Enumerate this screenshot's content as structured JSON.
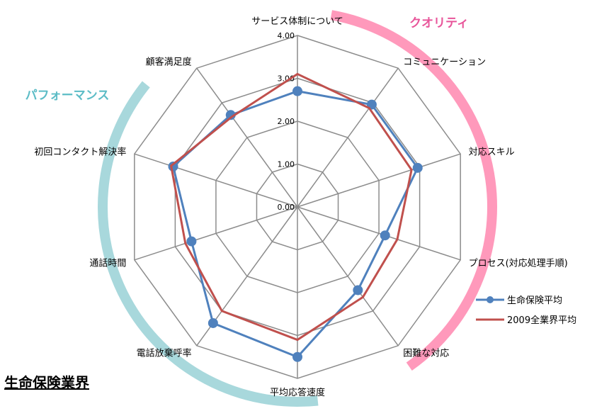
{
  "chart_data": {
    "type": "radar",
    "categories": [
      "サービス体制について",
      "コミュニケーション",
      "対応スキル",
      "プロセス(対応処理手順)",
      "困難な対応",
      "平均応答速度",
      "電話放棄呼率",
      "通話時間",
      "初回コンタクト解決率",
      "顧客満足度"
    ],
    "series": [
      {
        "name": "生命保険平均",
        "color": "#4f81bd",
        "values": [
          2.7,
          2.95,
          2.95,
          2.15,
          2.4,
          3.5,
          3.35,
          2.6,
          3.05,
          2.65
        ]
      },
      {
        "name": "2009全業界平均",
        "color": "#c0504d",
        "values": [
          3.1,
          2.85,
          2.8,
          2.45,
          2.6,
          3.1,
          3.0,
          2.75,
          3.1,
          2.6
        ]
      }
    ],
    "rmax": 4.0,
    "tick_labels": [
      "0.00",
      "1.00",
      "2.00",
      "3.00",
      "4.00"
    ],
    "groups": [
      {
        "label": "クオリティ",
        "color": "#ff99bb"
      },
      {
        "label": "パフォーマンス",
        "color": "#a8d8dc"
      }
    ]
  },
  "industry_label": "生命保険業界"
}
